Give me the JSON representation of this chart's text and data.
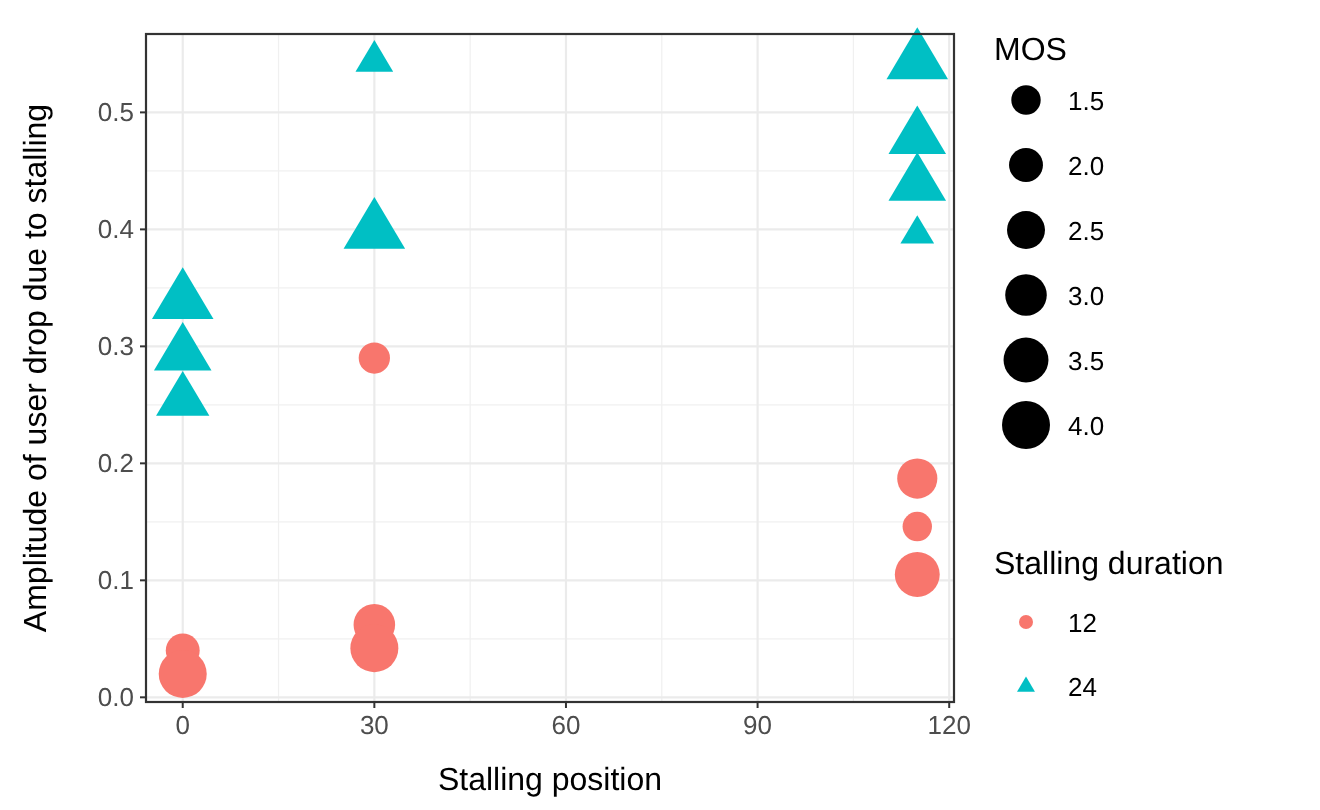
{
  "chart_data": {
    "type": "bubble",
    "xlabel": "Stalling position",
    "ylabel": "Amplitude of user drop due to stalling",
    "legend_title": [
      "MOS",
      "Stalling duration"
    ],
    "xlim": [
      -5.75,
      120.75
    ],
    "xticks": [
      0,
      30,
      60,
      90,
      120
    ],
    "ylim": [
      -0.004,
      0.567
    ],
    "yticks": [
      {
        "value": 0,
        "label": "0.0"
      },
      0.1,
      0.2,
      0.3,
      0.4,
      0.5
    ],
    "grid": true,
    "legend": "right",
    "size_legend": [
      1.5,
      {
        "value": 2,
        "label": "2.0"
      },
      2.5,
      {
        "value": 3,
        "label": "3.0"
      },
      3.5,
      {
        "value": 4,
        "label": "4.0"
      }
    ],
    "series": [
      {
        "name": "12",
        "color": "#f8766d",
        "marker": "circle",
        "x": [
          0,
          0,
          30,
          30,
          30,
          115,
          115,
          115
        ],
        "values": [
          0.04,
          0.02,
          0.29,
          0.062,
          0.042,
          0.187,
          0.146,
          0.105
        ],
        "sizes": [
          2.0,
          4.0,
          1.7,
          3.0,
          4.0,
          2.8,
          1.5,
          3.5
        ]
      },
      {
        "name": "24",
        "color": "#00bfc4",
        "marker": "triangle",
        "x": [
          0,
          0,
          0,
          30,
          30,
          115,
          115,
          115,
          115
        ],
        "values": [
          0.34,
          0.295,
          0.255,
          0.545,
          0.4,
          0.545,
          0.48,
          0.44,
          0.397
        ],
        "sizes": [
          4.0,
          3.5,
          3.0,
          1.5,
          4.0,
          4.0,
          3.5,
          3.5,
          1.2
        ]
      }
    ]
  }
}
